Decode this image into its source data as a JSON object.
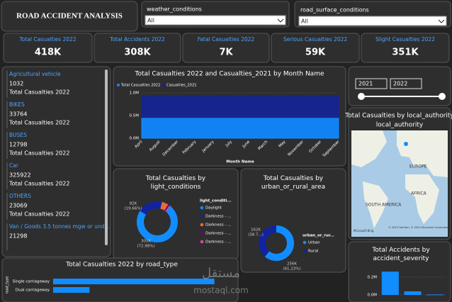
{
  "header": {
    "title": "ROAD ACCIDENT ANALYSIS"
  },
  "filters": [
    {
      "label": "weather_conditions",
      "value": "All"
    },
    {
      "label": "road_surface_conditions",
      "value": "All"
    }
  ],
  "kpis": [
    {
      "label": "Total Casualties 2022",
      "value": "418K"
    },
    {
      "label": "Total Accidents 2022",
      "value": "308K"
    },
    {
      "label": "Fatal Casualties 2022",
      "value": "7K"
    },
    {
      "label": "Serious Casualties 2022",
      "value": "59K"
    },
    {
      "label": "Slight Casualties 2022",
      "value": "351K"
    }
  ],
  "vehicles": [
    {
      "name": "Agricultural vehicle",
      "value": 1032,
      "caption": "Total Casualties 2022"
    },
    {
      "name": "BIKES",
      "value": 33764,
      "caption": "Total Casualties 2022"
    },
    {
      "name": "BUSES",
      "value": 12798,
      "caption": "Total Casualties 2022"
    },
    {
      "name": "Car",
      "value": 325922,
      "caption": "Total Casualties 2022"
    },
    {
      "name": "OTHERS",
      "value": 23069,
      "caption": "Total Casualties 2022"
    },
    {
      "name": "Van / Goods 3.5 tonnes mgw or und...",
      "value": 21298
    }
  ],
  "date_slicer": {
    "from": "2021",
    "to": "2022"
  },
  "map": {
    "title": "Total Casualties by local_authority",
    "labels": [
      "EUROPE",
      "AFRICA",
      "SOUTH AMERICA"
    ],
    "credit": "© 2020 TomTom, © 2020 Microsoft Corporation",
    "logo": "Microsoft Bing"
  },
  "watermark": {
    "arabic": "مستقل",
    "latin": "mostaql.com"
  },
  "chart_data": [
    {
      "type": "area",
      "title": "Total Casualties 2022 and Casualties_2021 by Month Name",
      "x_label": "Month Name",
      "categories": [
        "April",
        "August",
        "December",
        "February",
        "January",
        "July",
        "June",
        "March",
        "May",
        "November",
        "October",
        "September"
      ],
      "series": [
        {
          "name": "Total Casualties 2022",
          "color": "#118dff",
          "values": [
            440000,
            440000,
            440000,
            440000,
            440000,
            440000,
            440000,
            440000,
            440000,
            440000,
            440000,
            440000
          ]
        },
        {
          "name": "Casualties_2021",
          "color": "#12239e",
          "values": [
            920000,
            920000,
            920000,
            920000,
            920000,
            920000,
            920000,
            920000,
            920000,
            920000,
            920000,
            920000
          ]
        }
      ],
      "ylim": [
        0,
        1000000
      ],
      "yticks": [
        {
          "value": 0,
          "label": "0.0M"
        },
        {
          "value": 500000,
          "label": "0.5M"
        },
        {
          "value": 1000000,
          "label": "1.0M"
        }
      ],
      "grid": true
    },
    {
      "type": "donut",
      "title": "Total Casualties by light_conditions",
      "legend_title": "light_conditi...",
      "categories": [
        "Daylight",
        "Darkness - ...",
        "Darkness - ...",
        "Darkness - ...",
        "Darkness - ..."
      ],
      "values": [
        305000,
        82000,
        22000,
        5000,
        4000
      ],
      "value_labels": [
        "305K",
        "82K",
        null,
        null,
        null
      ],
      "percent_labels": [
        "(72.98%)",
        "(19.66%)",
        null,
        null,
        null
      ],
      "colors": [
        "#118dff",
        "#12239e",
        "#e66c37",
        "#6b007b",
        "#e044a7"
      ]
    },
    {
      "type": "donut",
      "title": "Total Casualties by urban_or_rural_area",
      "legend_title": "urban_or_rur...",
      "categories": [
        "Urban",
        "Rural"
      ],
      "values": [
        256000,
        162000
      ],
      "value_labels": [
        "256K",
        "162K"
      ],
      "percent_labels": [
        "(61.23%)",
        "(38.7...)"
      ],
      "colors": [
        "#118dff",
        "#12239e"
      ]
    },
    {
      "type": "hbar",
      "title": "Total Casualties 2022 by road_type",
      "y_label": "road_type",
      "categories": [
        "Single carriageway",
        "Dual carriageway"
      ],
      "values": [
        310000,
        70000
      ],
      "color": "#118dff",
      "xlim": [
        0,
        320000
      ]
    },
    {
      "type": "bar",
      "title": "Total Accidents by accident_severity",
      "categories": [
        null,
        null,
        null
      ],
      "values": [
        263000,
        40000,
        5000
      ],
      "color": "#118dff",
      "ylim": [
        0,
        280000
      ],
      "yticks": [
        {
          "value": 0,
          "label": "0.0M"
        },
        {
          "value": 200000,
          "label": "0.2M"
        }
      ]
    }
  ]
}
